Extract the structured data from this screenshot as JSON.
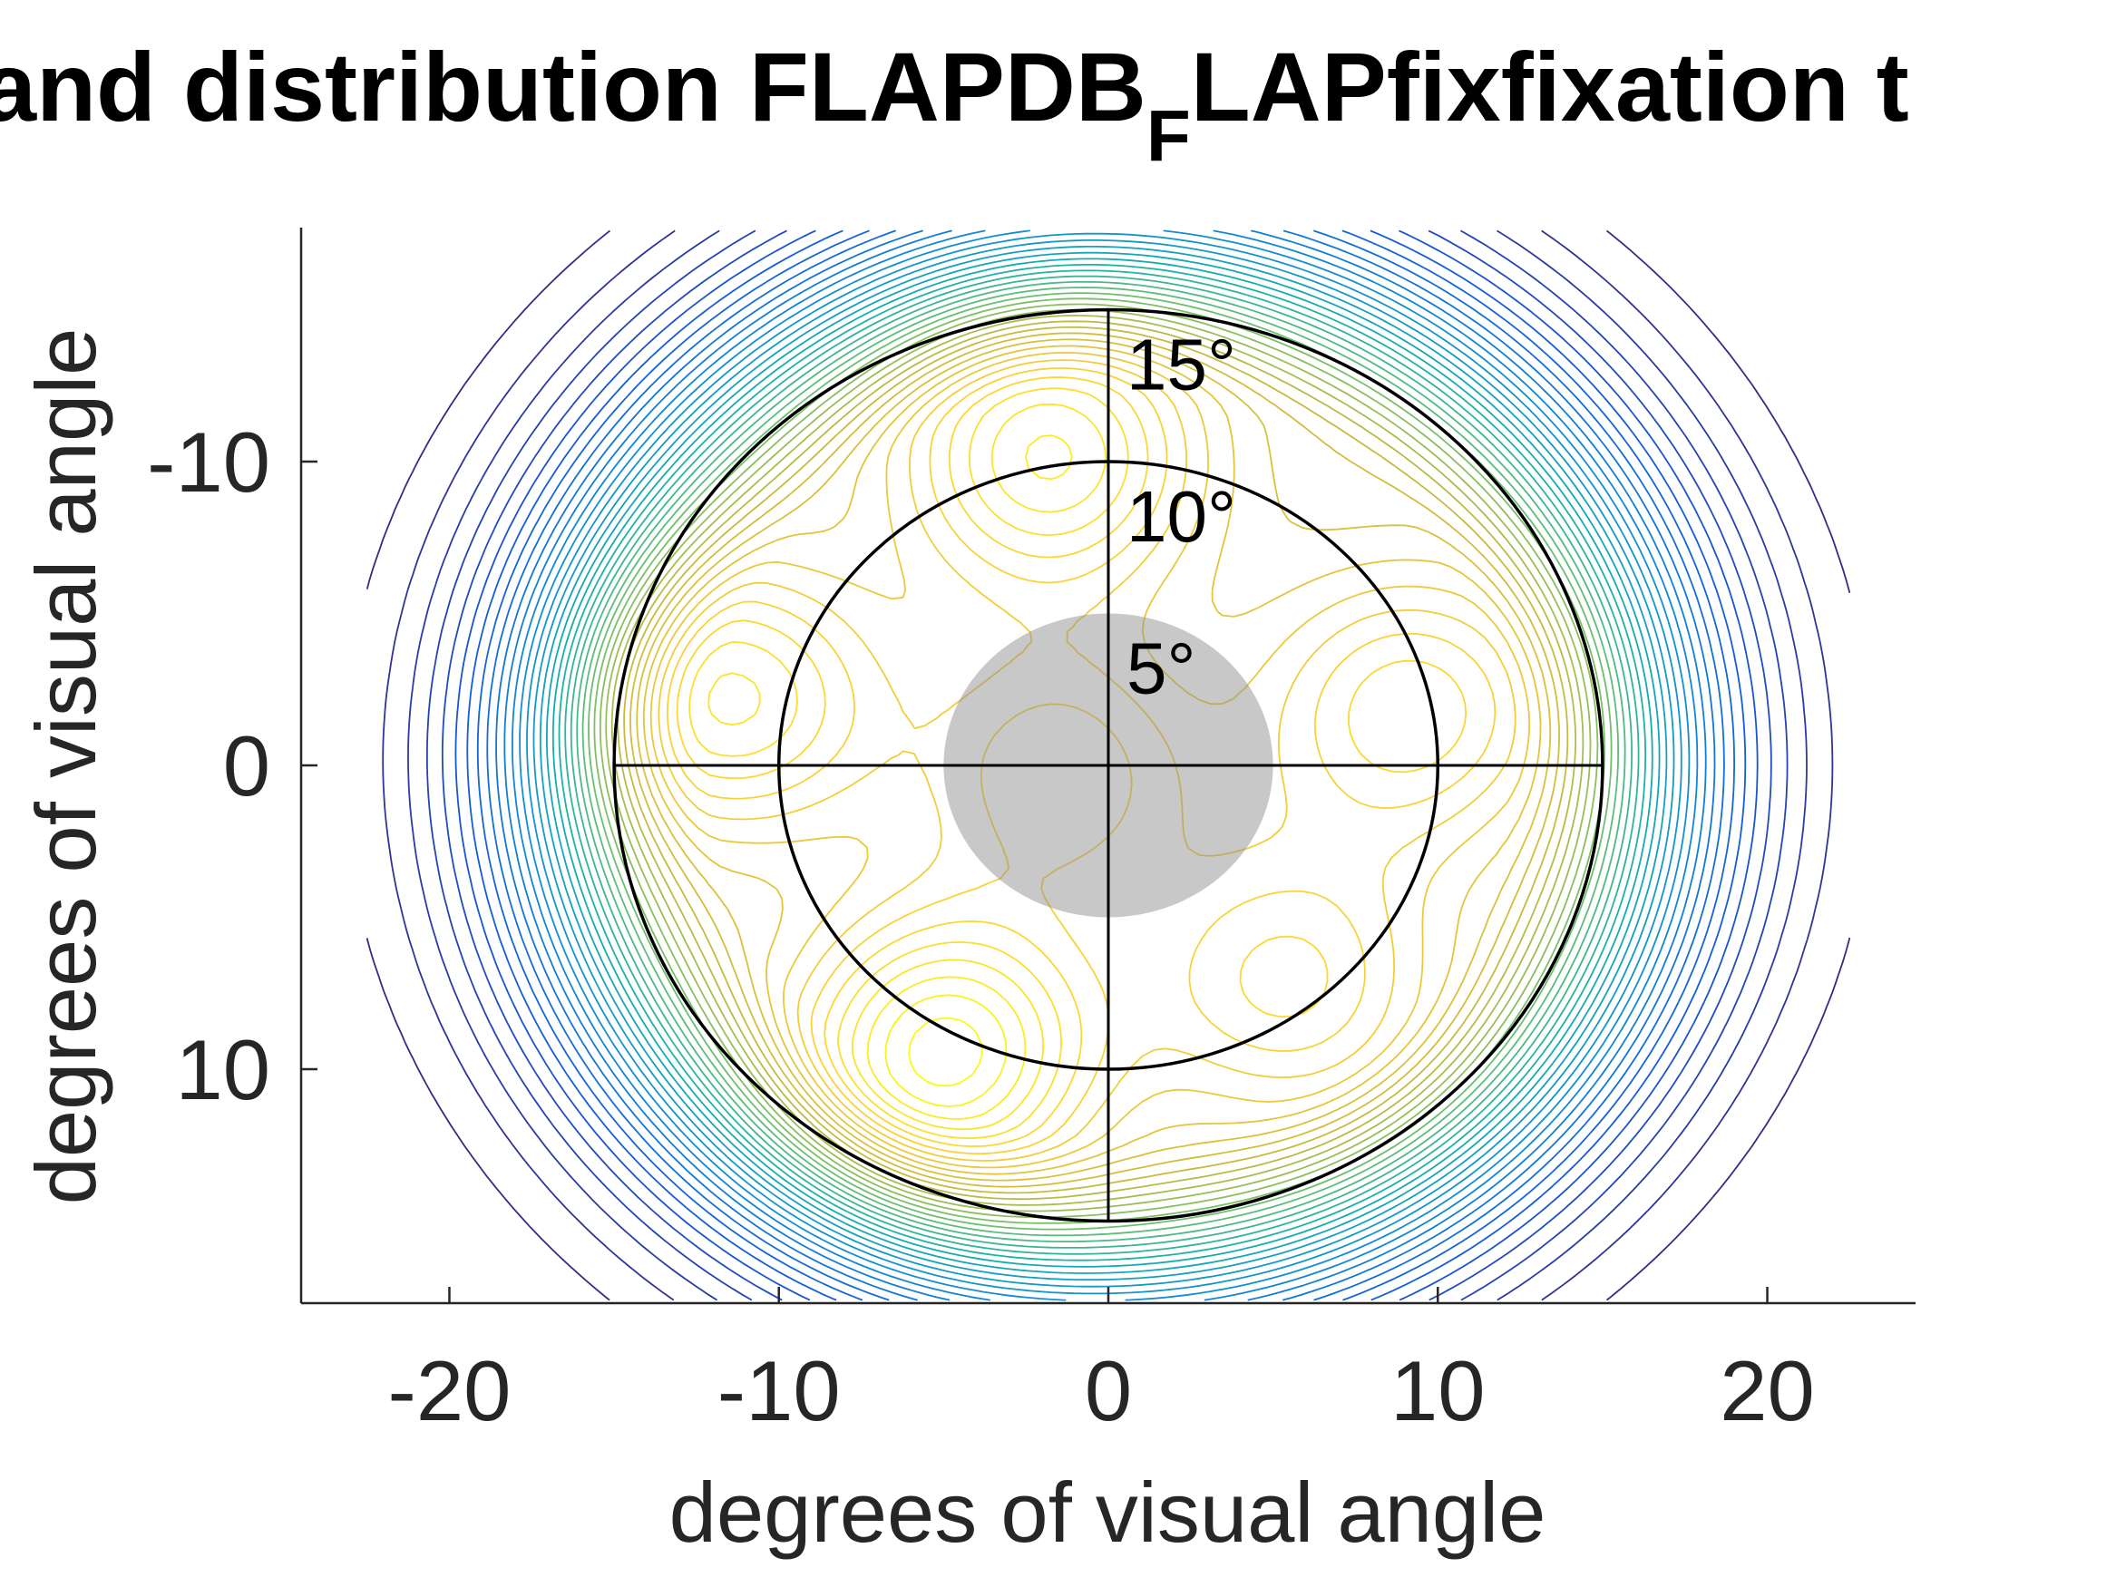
{
  "chart_data": {
    "type": "contour",
    "title_parts": [
      "and distribution FLAPDB",
      "F",
      "LAPfixfixation t"
    ],
    "xlabel": "degrees of visual angle",
    "ylabel": "degrees of visual angle",
    "xlim": [
      -24.5,
      24.5
    ],
    "ylim": [
      17.7,
      -17.7
    ],
    "y_direction": "reversed",
    "xticks": [
      -20,
      -10,
      0,
      10,
      20
    ],
    "yticks": [
      -10,
      0,
      10
    ],
    "xtick_labels": [
      "-20",
      "-10",
      "0",
      "10",
      "20"
    ],
    "ytick_labels": [
      "-10",
      "0",
      "10"
    ],
    "reference_circles": [
      {
        "radius": 5,
        "label": "5°"
      },
      {
        "radius": 10,
        "label": "10°"
      },
      {
        "radius": 15,
        "label": "15°"
      }
    ],
    "shaded_region": {
      "center": [
        0,
        0
      ],
      "radius": 5,
      "color": "#8c8c8c"
    },
    "crosshair": {
      "x_range": [
        -15,
        15
      ],
      "y_range": [
        -15,
        15
      ]
    },
    "density_peaks": [
      {
        "x": -11.5,
        "y": -2.2,
        "level": 0.72
      },
      {
        "x": -1.8,
        "y": -10.2,
        "level": 0.8
      },
      {
        "x": -5.0,
        "y": 9.5,
        "level": 1.0
      },
      {
        "x": 9.2,
        "y": -1.8,
        "level": 0.6
      },
      {
        "x": 5.5,
        "y": 7.2,
        "level": 0.55
      },
      {
        "x": -1.5,
        "y": 0.2,
        "level": 0.5
      }
    ],
    "colormap": "parula",
    "contour_levels": 42,
    "grid": false
  }
}
